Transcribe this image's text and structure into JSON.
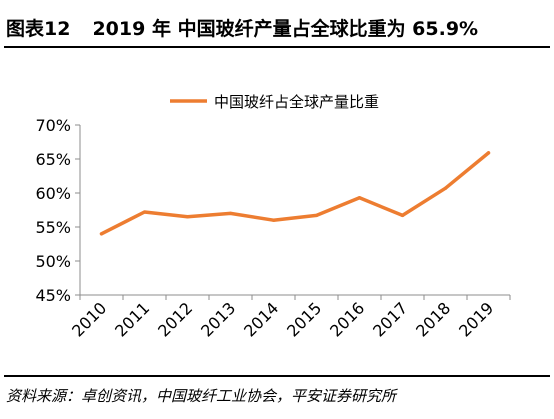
{
  "figure": {
    "label": "图表12",
    "title": "2019 年 中国玻纤产量占全球比重为 65.9%",
    "source": "资料来源：卓创资讯，中国玻纤工业协会，平安证券研究所"
  },
  "chart_data": {
    "type": "line",
    "x": [
      "2010",
      "2011",
      "2012",
      "2013",
      "2014",
      "2015",
      "2016",
      "2017",
      "2018",
      "2019"
    ],
    "series": [
      {
        "name": "中国玻纤占全球产量比重",
        "values": [
          54.0,
          57.2,
          56.5,
          57.0,
          56.0,
          56.7,
          59.3,
          56.7,
          60.7,
          65.9
        ],
        "color": "#ED7D31"
      }
    ],
    "yticks": [
      "45%",
      "50%",
      "55%",
      "60%",
      "65%",
      "70%"
    ],
    "ylim": [
      45,
      70
    ],
    "grid": false,
    "legend": "top"
  }
}
